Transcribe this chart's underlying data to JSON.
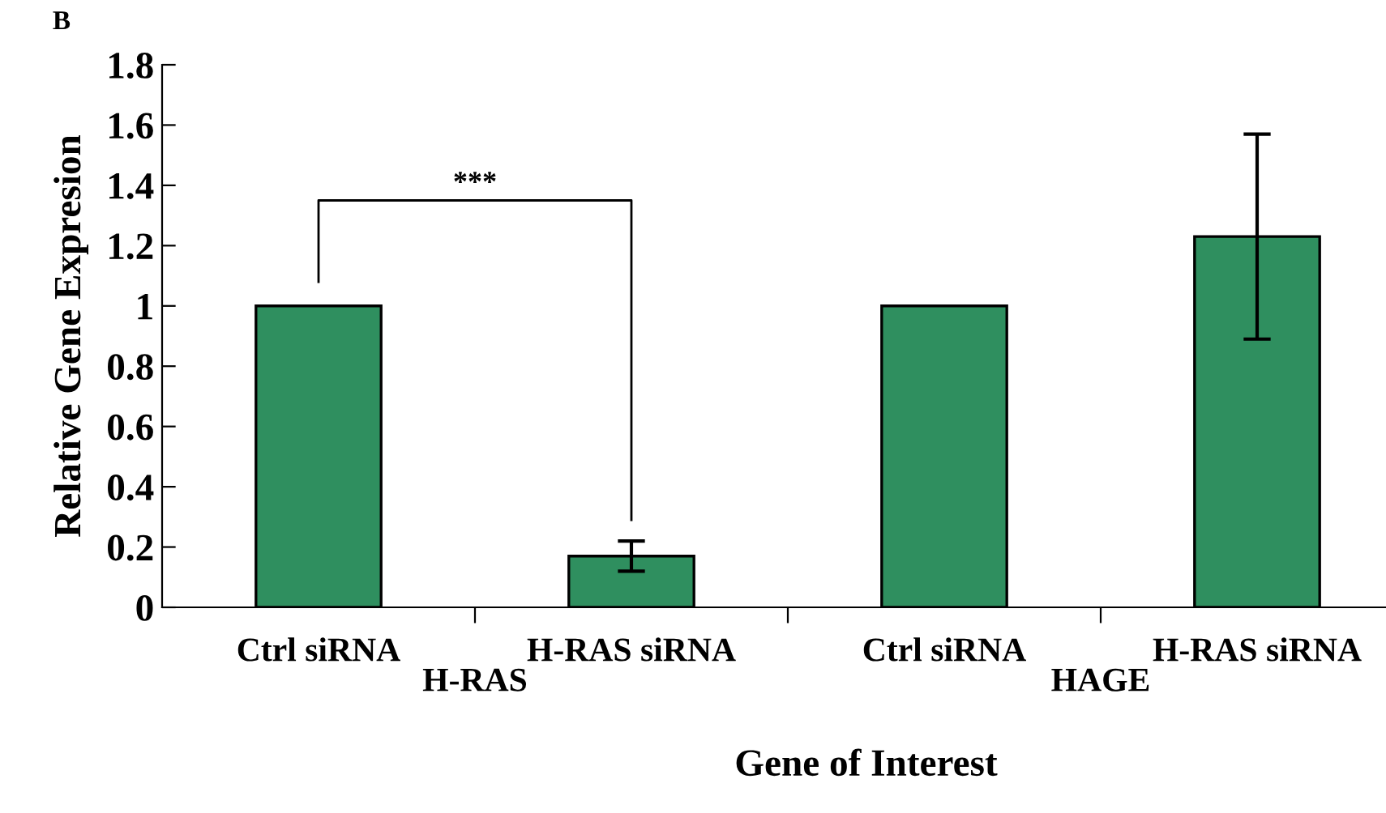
{
  "chart_data": {
    "type": "bar",
    "xlabel": "Gene of Interest",
    "ylabel": "Relative Gene Expresion",
    "categories": [
      "Ctrl siRNA",
      "H-RAS siRNA",
      "Ctrl siRNA",
      "H-RAS siRNA"
    ],
    "values": [
      1,
      0.17,
      1,
      1.23
    ],
    "errors": [
      null,
      0.05,
      null,
      0.34
    ],
    "color": "#2f8f5f",
    "ylim": [
      0,
      1.8
    ],
    "yticks": [
      0,
      0.2,
      0.4,
      0.6,
      0.8,
      1,
      1.2,
      1.4,
      1.6,
      1.8
    ],
    "annotations": [
      "B",
      "***",
      "H-RAS",
      "HAGE"
    ]
  }
}
